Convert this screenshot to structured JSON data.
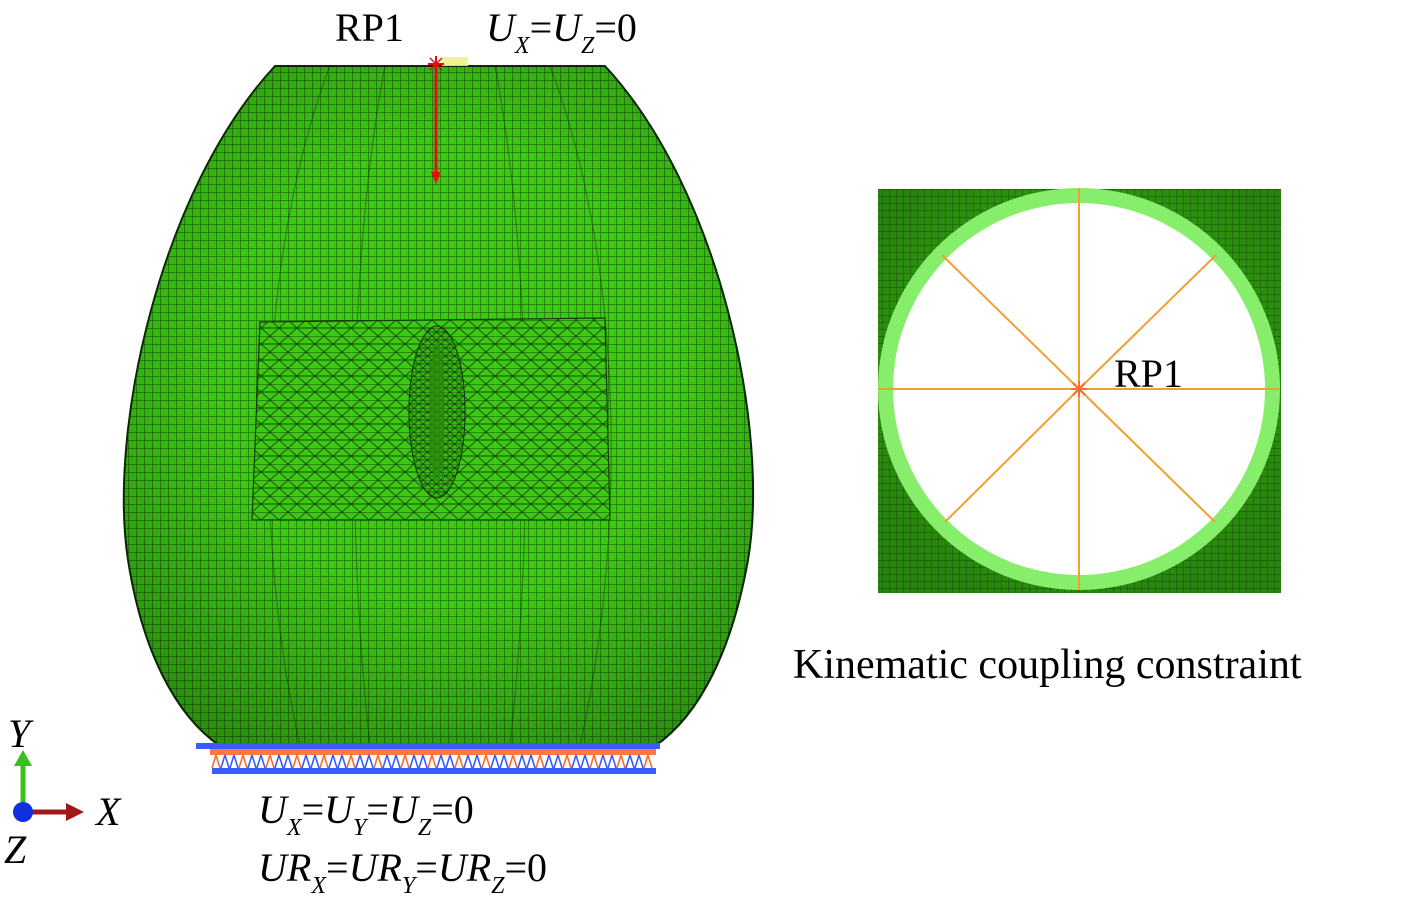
{
  "top_reference_label": "RP1",
  "top_bc": {
    "u": "U",
    "eq": "=",
    "x": "X",
    "z": "Z",
    "zero": "=0"
  },
  "bottom_bc_line1": {
    "u": "U",
    "eq": "=",
    "x": "X",
    "y": "Y",
    "z": "Z",
    "zero": "=0"
  },
  "bottom_bc_line2": {
    "ur": "UR",
    "eq": "=",
    "x": "X",
    "y": "Y",
    "z": "Z",
    "zero": "=0"
  },
  "axes": {
    "y": "Y",
    "x": "X",
    "z": "Z"
  },
  "inset_reference_label": "RP1",
  "inset_caption": "Kinematic coupling constraint",
  "colors": {
    "mesh_green": "#39cc13",
    "mesh_dark": "#1f5a0a",
    "load_arrow": "#e01010",
    "coupling_lines": "#f0a030",
    "bc_blue": "#3a5cff",
    "bc_orange": "#ff6a30",
    "axis_y": "#38c020",
    "axis_x": "#a01818",
    "axis_z": "#1030e0",
    "rim_light_green": "#86ee6a"
  }
}
